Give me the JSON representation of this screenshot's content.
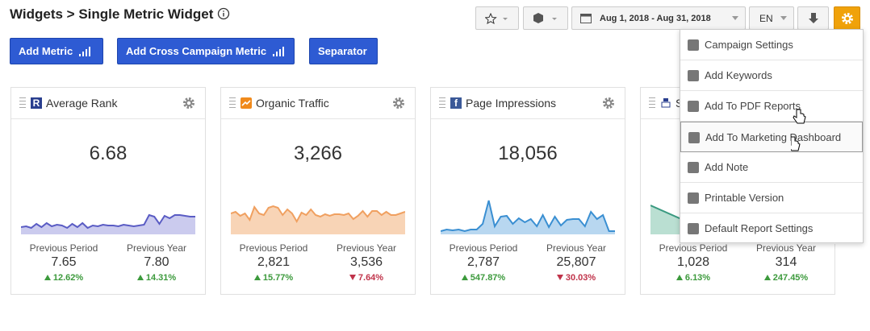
{
  "header": {
    "title": "Widgets > Single Metric Widget"
  },
  "toolbar": {
    "date_range": "Aug 1, 2018 - Aug 31, 2018",
    "language": "EN"
  },
  "buttons": [
    "Add Metric",
    "Add Cross Campaign Metric",
    "Separator"
  ],
  "widgets": [
    {
      "badge": "R",
      "title": "Average Rank",
      "value": "6.68",
      "color": "#5a5cc4",
      "fill": "#cbcbee",
      "previous_period": {
        "label": "Previous Period",
        "value": "7.65",
        "change": "12.62%",
        "trend": "up"
      },
      "previous_year": {
        "label": "Previous Year",
        "value": "7.80",
        "change": "14.31%",
        "trend": "up"
      }
    },
    {
      "badge": "",
      "title": "Organic Traffic",
      "value": "3,266",
      "color": "#f0a060",
      "fill": "#f8d4b6",
      "previous_period": {
        "label": "Previous Period",
        "value": "2,821",
        "change": "15.77%",
        "trend": "up"
      },
      "previous_year": {
        "label": "Previous Year",
        "value": "3,536",
        "change": "7.64%",
        "trend": "down"
      }
    },
    {
      "badge": "f",
      "title": "Page Impressions",
      "value": "18,056",
      "color": "#3a8fd2",
      "fill": "#b8d7f0",
      "previous_period": {
        "label": "Previous Period",
        "value": "2,787",
        "change": "547.87%",
        "trend": "up"
      },
      "previous_year": {
        "label": "Previous Year",
        "value": "25,807",
        "change": "30.03%",
        "trend": "down"
      }
    },
    {
      "badge": "",
      "title": "S",
      "value": "",
      "color": "#3a9a80",
      "fill": "#badfd2",
      "previous_period": {
        "label": "Previous Period",
        "value": "1,028",
        "change": "6.13%",
        "trend": "up"
      },
      "previous_year": {
        "label": "Previous Year",
        "value": "314",
        "change": "247.45%",
        "trend": "up"
      }
    }
  ],
  "menu": [
    "Campaign Settings",
    "Add Keywords",
    "Add To PDF Reports",
    "Add To Marketing Dashboard",
    "Add Note",
    "Printable Version",
    "Default Report Settings"
  ]
}
